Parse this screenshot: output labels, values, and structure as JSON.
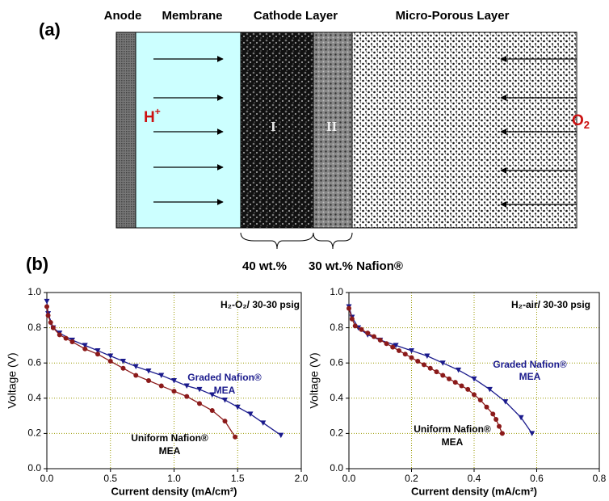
{
  "diagram": {
    "panel_a": "(a)",
    "panel_b": "(b)",
    "layers": [
      "Anode",
      "Membrane",
      "Cathode Layer",
      "Micro-Porous Layer"
    ],
    "proton": {
      "text": "H",
      "sup": "+"
    },
    "oxygen": {
      "text": "O",
      "sub": "2"
    },
    "sublayers": [
      "I",
      "II"
    ],
    "loadings": [
      "40 wt.%",
      "30 wt.% Nafion®"
    ]
  },
  "chart_data": [
    {
      "type": "line",
      "xlabel": "Current density (mA/cm²)",
      "ylabel": "Voltage (V)",
      "xlim": [
        0,
        2
      ],
      "ylim": [
        0,
        1
      ],
      "xticks": [
        {
          "value": 0,
          "label": "0.0"
        },
        {
          "value": 0.5,
          "label": "0.5"
        },
        {
          "value": 1,
          "label": "1.0"
        },
        {
          "value": 1.5,
          "label": "1.5"
        },
        {
          "value": 2,
          "label": "2.0"
        }
      ],
      "yticks": [
        {
          "value": 0,
          "label": "0.0"
        },
        {
          "value": 0.2,
          "label": "0.2"
        },
        {
          "value": 0.4,
          "label": "0.4"
        },
        {
          "value": 0.6,
          "label": "0.6"
        },
        {
          "value": 0.8,
          "label": "0.8"
        },
        {
          "value": 1,
          "label": "1.0"
        }
      ],
      "grid": true,
      "annotations": [
        {
          "text": "H₂-O₂/ 30-30 psig",
          "color": "#000000"
        },
        {
          "text": "Graded Nafion®",
          "color": "#1a1a8c"
        },
        {
          "text": "MEA",
          "color": "#1a1a8c"
        },
        {
          "text": "Uniform Nafion®",
          "color": "#000000"
        },
        {
          "text": "MEA",
          "color": "#000000"
        }
      ],
      "series": [
        {
          "color": "#1a1a8c",
          "marker": "triangle",
          "x": [
            0,
            0.01,
            0.05,
            0.1,
            0.2,
            0.3,
            0.4,
            0.5,
            0.6,
            0.7,
            0.8,
            0.9,
            1.0,
            1.1,
            1.2,
            1.3,
            1.4,
            1.5,
            1.6,
            1.7,
            1.84
          ],
          "values": [
            0.95,
            0.88,
            0.8,
            0.77,
            0.73,
            0.7,
            0.67,
            0.64,
            0.61,
            0.58,
            0.555,
            0.53,
            0.5,
            0.47,
            0.45,
            0.42,
            0.39,
            0.35,
            0.31,
            0.26,
            0.19
          ]
        },
        {
          "color": "#8b1a1a",
          "marker": "circle",
          "x": [
            0,
            0.01,
            0.03,
            0.05,
            0.1,
            0.15,
            0.2,
            0.3,
            0.4,
            0.5,
            0.6,
            0.7,
            0.8,
            0.9,
            1.0,
            1.1,
            1.2,
            1.3,
            1.4,
            1.48
          ],
          "values": [
            0.92,
            0.87,
            0.83,
            0.8,
            0.76,
            0.74,
            0.72,
            0.68,
            0.65,
            0.61,
            0.57,
            0.53,
            0.5,
            0.47,
            0.44,
            0.41,
            0.37,
            0.33,
            0.27,
            0.18
          ]
        }
      ]
    },
    {
      "type": "line",
      "xlabel": "Current density (mA/cm²)",
      "ylabel": "Voltage (V)",
      "xlim": [
        0,
        0.8
      ],
      "ylim": [
        0,
        1
      ],
      "xticks": [
        {
          "value": 0,
          "label": "0.0"
        },
        {
          "value": 0.2,
          "label": "0.2"
        },
        {
          "value": 0.4,
          "label": "0.4"
        },
        {
          "value": 0.6,
          "label": "0.6"
        },
        {
          "value": 0.8,
          "label": "0.8"
        }
      ],
      "yticks": [
        {
          "value": 0,
          "label": "0.0"
        },
        {
          "value": 0.2,
          "label": "0.2"
        },
        {
          "value": 0.4,
          "label": "0.4"
        },
        {
          "value": 0.6,
          "label": "0.6"
        },
        {
          "value": 0.8,
          "label": "0.8"
        },
        {
          "value": 1,
          "label": "1.0"
        }
      ],
      "grid": true,
      "annotations": [
        {
          "text": "H₂-air/ 30-30 psig",
          "color": "#000000"
        },
        {
          "text": "Graded Nafion®",
          "color": "#1a1a8c"
        },
        {
          "text": "MEA",
          "color": "#1a1a8c"
        },
        {
          "text": "Uniform Nafion®",
          "color": "#000000"
        },
        {
          "text": "MEA",
          "color": "#000000"
        }
      ],
      "series": [
        {
          "color": "#1a1a8c",
          "marker": "triangle",
          "x": [
            0,
            0.01,
            0.03,
            0.06,
            0.1,
            0.15,
            0.2,
            0.25,
            0.3,
            0.35,
            0.4,
            0.45,
            0.5,
            0.55,
            0.585
          ],
          "values": [
            0.92,
            0.86,
            0.8,
            0.76,
            0.73,
            0.7,
            0.67,
            0.64,
            0.6,
            0.56,
            0.51,
            0.45,
            0.38,
            0.29,
            0.2
          ]
        },
        {
          "color": "#8b1a1a",
          "marker": "circle",
          "x": [
            0,
            0.01,
            0.02,
            0.04,
            0.06,
            0.08,
            0.1,
            0.12,
            0.14,
            0.16,
            0.18,
            0.2,
            0.22,
            0.24,
            0.26,
            0.28,
            0.3,
            0.32,
            0.34,
            0.36,
            0.38,
            0.4,
            0.42,
            0.44,
            0.46,
            0.47,
            0.48,
            0.49
          ],
          "values": [
            0.91,
            0.85,
            0.81,
            0.79,
            0.77,
            0.75,
            0.73,
            0.71,
            0.69,
            0.67,
            0.65,
            0.63,
            0.61,
            0.59,
            0.57,
            0.55,
            0.53,
            0.51,
            0.49,
            0.47,
            0.45,
            0.42,
            0.39,
            0.35,
            0.31,
            0.28,
            0.24,
            0.2
          ]
        }
      ]
    }
  ]
}
